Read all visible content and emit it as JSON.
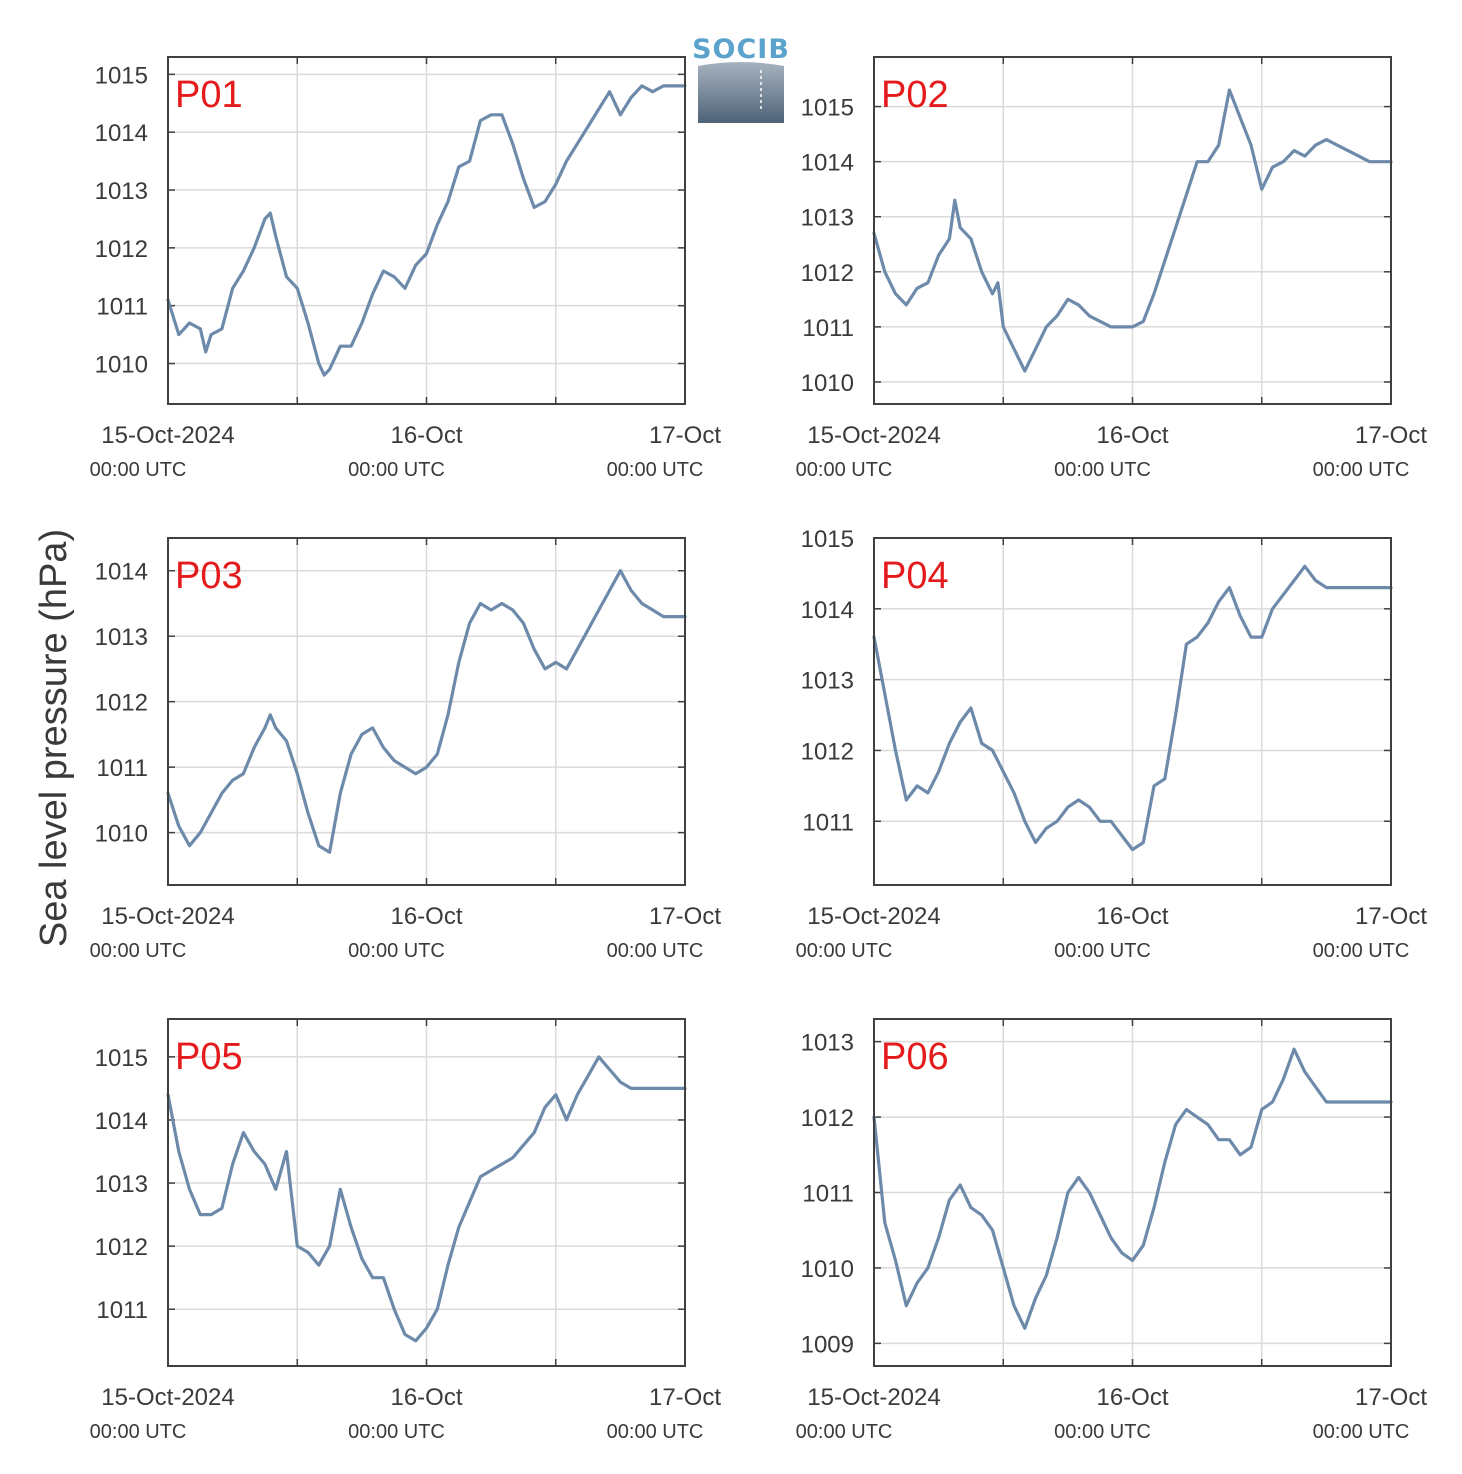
{
  "ylabel": "Sea level pressure (hPa)",
  "logo": {
    "text": "SOCIB",
    "color": "#5ba3cc"
  },
  "colors": {
    "line": "#6d8aab",
    "label": "#e41a1c",
    "grid": "#dadada",
    "axis": "#404040"
  },
  "xticks": [
    {
      "date": "15-Oct-2024",
      "time": "00:00 UTC"
    },
    {
      "date": "16-Oct",
      "time": "00:00 UTC"
    },
    {
      "date": "17-Oct",
      "time": "00:00 UTC"
    }
  ],
  "chart_data": [
    {
      "type": "line",
      "station": "P01",
      "xlim": [
        0,
        48
      ],
      "ylim": [
        1009.3,
        1015.3
      ],
      "yticks": [
        1010,
        1011,
        1012,
        1013,
        1014,
        1015
      ],
      "x": [
        0,
        1,
        2,
        3,
        3.5,
        4,
        5,
        6,
        7,
        8,
        9,
        9.5,
        10,
        11,
        12,
        13,
        14,
        14.5,
        15,
        16,
        17,
        18,
        19,
        20,
        21,
        22,
        23,
        24,
        25,
        26,
        27,
        28,
        29,
        30,
        31,
        32,
        33,
        34,
        35,
        36,
        37,
        38,
        39,
        40,
        41,
        42,
        43,
        44,
        45,
        46,
        47,
        48
      ],
      "y": [
        1011.1,
        1010.5,
        1010.7,
        1010.6,
        1010.2,
        1010.5,
        1010.6,
        1011.3,
        1011.6,
        1012.0,
        1012.5,
        1012.6,
        1012.2,
        1011.5,
        1011.3,
        1010.7,
        1010.0,
        1009.8,
        1009.9,
        1010.3,
        1010.3,
        1010.7,
        1011.2,
        1011.6,
        1011.5,
        1011.3,
        1011.7,
        1011.9,
        1012.4,
        1012.8,
        1013.4,
        1013.5,
        1014.2,
        1014.3,
        1014.3,
        1013.8,
        1013.2,
        1012.7,
        1012.8,
        1013.1,
        1013.5,
        1013.8,
        1014.1,
        1014.4,
        1014.7,
        1014.3,
        1014.6,
        1014.8,
        1014.7,
        1014.8,
        1014.8,
        1014.8
      ]
    },
    {
      "type": "line",
      "station": "P02",
      "xlim": [
        0,
        48
      ],
      "ylim": [
        1009.6,
        1015.9
      ],
      "yticks": [
        1010,
        1011,
        1012,
        1013,
        1014,
        1015
      ],
      "x": [
        0,
        1,
        2,
        3,
        4,
        5,
        6,
        7,
        7.5,
        8,
        9,
        10,
        11,
        11.5,
        12,
        13,
        14,
        14.5,
        15,
        16,
        17,
        18,
        19,
        20,
        21,
        22,
        23,
        24,
        25,
        26,
        27,
        28,
        29,
        30,
        31,
        32,
        33,
        34,
        35,
        36,
        37,
        38,
        39,
        40,
        41,
        42,
        43,
        44,
        45,
        46,
        47,
        48
      ],
      "y": [
        1012.7,
        1012.0,
        1011.6,
        1011.4,
        1011.7,
        1011.8,
        1012.3,
        1012.6,
        1013.3,
        1012.8,
        1012.6,
        1012.0,
        1011.6,
        1011.8,
        1011.0,
        1010.6,
        1010.2,
        1010.4,
        1010.6,
        1011.0,
        1011.2,
        1011.5,
        1011.4,
        1011.2,
        1011.1,
        1011.0,
        1011.0,
        1011.0,
        1011.1,
        1011.6,
        1012.2,
        1012.8,
        1013.4,
        1014.0,
        1014.0,
        1014.3,
        1015.3,
        1014.8,
        1014.3,
        1013.5,
        1013.9,
        1014.0,
        1014.2,
        1014.1,
        1014.3,
        1014.4,
        1014.3,
        1014.2,
        1014.1,
        1014.0,
        1014.0,
        1014.0
      ]
    },
    {
      "type": "line",
      "station": "P03",
      "xlim": [
        0,
        48
      ],
      "ylim": [
        1009.2,
        1014.5
      ],
      "yticks": [
        1010,
        1011,
        1012,
        1013,
        1014
      ],
      "x": [
        0,
        1,
        2,
        3,
        4,
        5,
        6,
        7,
        8,
        9,
        9.5,
        10,
        11,
        12,
        13,
        14,
        15,
        16,
        16.5,
        17,
        18,
        19,
        20,
        21,
        22,
        23,
        24,
        25,
        26,
        27,
        28,
        29,
        30,
        31,
        32,
        33,
        34,
        35,
        36,
        37,
        38,
        39,
        40,
        41,
        42,
        43,
        44,
        45,
        46,
        47,
        48
      ],
      "y": [
        1010.6,
        1010.1,
        1009.8,
        1010.0,
        1010.3,
        1010.6,
        1010.8,
        1010.9,
        1011.3,
        1011.6,
        1011.8,
        1011.6,
        1011.4,
        1010.9,
        1010.3,
        1009.8,
        1009.7,
        1010.6,
        1010.9,
        1011.2,
        1011.5,
        1011.6,
        1011.3,
        1011.1,
        1011.0,
        1010.9,
        1011.0,
        1011.2,
        1011.8,
        1012.6,
        1013.2,
        1013.5,
        1013.4,
        1013.5,
        1013.4,
        1013.2,
        1012.8,
        1012.5,
        1012.6,
        1012.5,
        1012.8,
        1013.1,
        1013.4,
        1013.7,
        1014.0,
        1013.7,
        1013.5,
        1013.4,
        1013.3,
        1013.3,
        1013.3
      ]
    },
    {
      "type": "line",
      "station": "P04",
      "xlim": [
        0,
        48
      ],
      "ylim": [
        1010.1,
        1015.0
      ],
      "yticks": [
        1011,
        1012,
        1013,
        1014,
        1015
      ],
      "x": [
        0,
        1,
        2,
        3,
        4,
        5,
        6,
        7,
        8,
        9,
        10,
        11,
        12,
        13,
        14,
        15,
        16,
        17,
        18,
        19,
        20,
        21,
        22,
        23,
        24,
        25,
        26,
        27,
        28,
        29,
        30,
        31,
        32,
        33,
        34,
        35,
        36,
        37,
        38,
        39,
        40,
        41,
        42,
        43,
        44,
        45,
        46,
        47,
        48
      ],
      "y": [
        1013.6,
        1012.8,
        1012.0,
        1011.3,
        1011.5,
        1011.4,
        1011.7,
        1012.1,
        1012.4,
        1012.6,
        1012.1,
        1012.0,
        1011.7,
        1011.4,
        1011.0,
        1010.7,
        1010.9,
        1011.0,
        1011.2,
        1011.3,
        1011.2,
        1011.0,
        1011.0,
        1010.8,
        1010.6,
        1010.7,
        1011.5,
        1011.6,
        1012.5,
        1013.5,
        1013.6,
        1013.8,
        1014.1,
        1014.3,
        1013.9,
        1013.6,
        1013.6,
        1014.0,
        1014.2,
        1014.4,
        1014.6,
        1014.4,
        1014.3,
        1014.3,
        1014.3,
        1014.3,
        1014.3,
        1014.3,
        1014.3
      ]
    },
    {
      "type": "line",
      "station": "P05",
      "xlim": [
        0,
        48
      ],
      "ylim": [
        1010.1,
        1015.6
      ],
      "yticks": [
        1011,
        1012,
        1013,
        1014,
        1015
      ],
      "x": [
        0,
        1,
        2,
        3,
        4,
        5,
        6,
        7,
        8,
        9,
        10,
        11,
        12,
        13,
        14,
        15,
        16,
        17,
        18,
        19,
        20,
        21,
        22,
        23,
        24,
        25,
        26,
        27,
        28,
        29,
        30,
        31,
        32,
        33,
        34,
        35,
        36,
        37,
        38,
        39,
        40,
        41,
        42,
        43,
        44,
        45,
        46,
        47,
        48
      ],
      "y": [
        1014.4,
        1013.5,
        1012.9,
        1012.5,
        1012.5,
        1012.6,
        1013.3,
        1013.8,
        1013.5,
        1013.3,
        1012.9,
        1013.5,
        1012.0,
        1011.9,
        1011.7,
        1012.0,
        1012.9,
        1012.3,
        1011.8,
        1011.5,
        1011.5,
        1011.0,
        1010.6,
        1010.5,
        1010.7,
        1011.0,
        1011.7,
        1012.3,
        1012.7,
        1013.1,
        1013.2,
        1013.3,
        1013.4,
        1013.6,
        1013.8,
        1014.2,
        1014.4,
        1014.0,
        1014.4,
        1014.7,
        1015.0,
        1014.8,
        1014.6,
        1014.5,
        1014.5,
        1014.5,
        1014.5,
        1014.5,
        1014.5
      ]
    },
    {
      "type": "line",
      "station": "P06",
      "xlim": [
        0,
        48
      ],
      "ylim": [
        1008.7,
        1013.3
      ],
      "yticks": [
        1009,
        1010,
        1011,
        1012,
        1013
      ],
      "x": [
        0,
        1,
        2,
        3,
        4,
        5,
        6,
        7,
        8,
        9,
        10,
        11,
        12,
        13,
        14,
        15,
        16,
        17,
        18,
        19,
        20,
        21,
        22,
        23,
        24,
        25,
        26,
        27,
        28,
        29,
        30,
        31,
        32,
        33,
        34,
        35,
        36,
        37,
        38,
        39,
        40,
        41,
        42,
        43,
        44,
        45,
        46,
        47,
        48
      ],
      "y": [
        1012.0,
        1010.6,
        1010.1,
        1009.5,
        1009.8,
        1010.0,
        1010.4,
        1010.9,
        1011.1,
        1010.8,
        1010.7,
        1010.5,
        1010.0,
        1009.5,
        1009.2,
        1009.6,
        1009.9,
        1010.4,
        1011.0,
        1011.2,
        1011.0,
        1010.7,
        1010.4,
        1010.2,
        1010.1,
        1010.3,
        1010.8,
        1011.4,
        1011.9,
        1012.1,
        1012.0,
        1011.9,
        1011.7,
        1011.7,
        1011.5,
        1011.6,
        1012.1,
        1012.2,
        1012.5,
        1012.9,
        1012.6,
        1012.4,
        1012.2,
        1012.2,
        1012.2,
        1012.2,
        1012.2,
        1012.2,
        1012.2
      ]
    }
  ]
}
